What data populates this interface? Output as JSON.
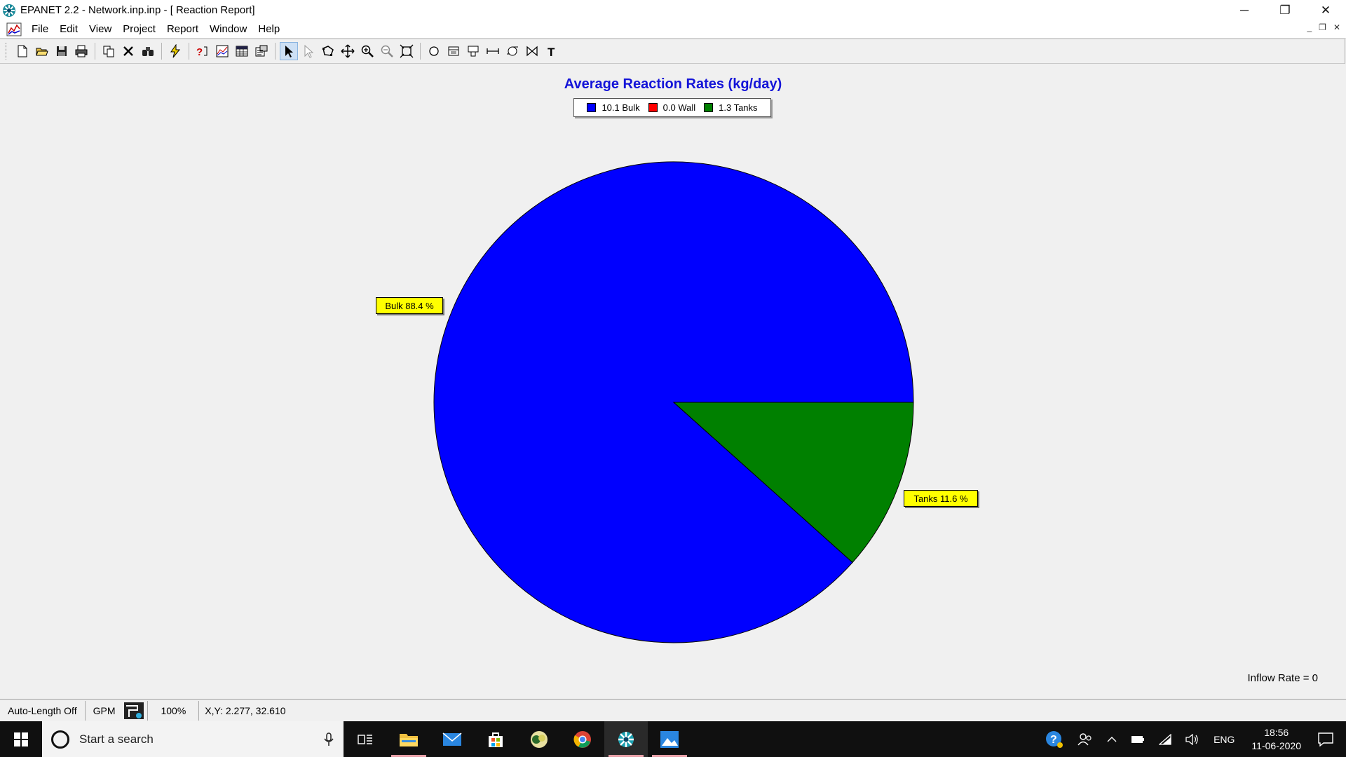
{
  "window": {
    "title": "EPANET 2.2 - Network.inp.inp - [ Reaction Report]",
    "controls": {
      "minimize": "─",
      "restore": "❐",
      "close": "✕"
    }
  },
  "menu": {
    "items": [
      "File",
      "Edit",
      "View",
      "Project",
      "Report",
      "Window",
      "Help"
    ],
    "mdi_controls": {
      "minimize": "_",
      "restore": "❐",
      "close": "✕"
    }
  },
  "toolbar": {
    "groups": [
      [
        "new-file-icon",
        "open-folder-icon",
        "save-icon",
        "print-icon"
      ],
      [
        "copy-icon",
        "delete-icon",
        "find-icon"
      ],
      [
        "run-analysis-icon"
      ],
      [
        "query-icon",
        "graph-icon",
        "table-icon",
        "options-icon"
      ],
      [
        "select-object-icon",
        "select-vertex-icon",
        "select-region-icon",
        "pan-icon",
        "zoom-in-icon",
        "zoom-out-icon",
        "full-extent-icon"
      ],
      [
        "add-junction-icon",
        "add-reservoir-icon",
        "add-tank-icon",
        "add-pipe-icon",
        "add-pump-icon",
        "add-valve-icon",
        "add-label-icon"
      ]
    ]
  },
  "chart_data": {
    "type": "pie",
    "title": "Average Reaction Rates (kg/day)",
    "legend_placement": "top",
    "legend": [
      "10.1 Bulk",
      "0.0 Wall",
      "1.3 Tanks"
    ],
    "slices": [
      {
        "name": "Bulk",
        "value": 10.1,
        "percent": 88.4,
        "color": "#0000ff",
        "label": "Bulk 88.4 %"
      },
      {
        "name": "Wall",
        "value": 0.0,
        "percent": 0.0,
        "color": "#ff0000",
        "label": ""
      },
      {
        "name": "Tanks",
        "value": 1.3,
        "percent": 11.6,
        "color": "#008000",
        "label": "Tanks 11.6 %"
      }
    ]
  },
  "inflow_rate": "Inflow Rate = 0",
  "statusbar": {
    "auto_length": "Auto-Length Off",
    "flow_units": "GPM",
    "zoom": "100%",
    "coordinates": "X,Y: 2.277, 32.610"
  },
  "taskbar": {
    "search_placeholder": "Start a search",
    "apps": [
      "task-view-icon",
      "file-explorer-icon",
      "mail-icon",
      "store-icon",
      "app-icon",
      "chrome-icon",
      "epanet-icon",
      "photos-icon"
    ],
    "tray": {
      "language": "ENG",
      "time": "18:56",
      "date": "11-06-2020"
    }
  }
}
